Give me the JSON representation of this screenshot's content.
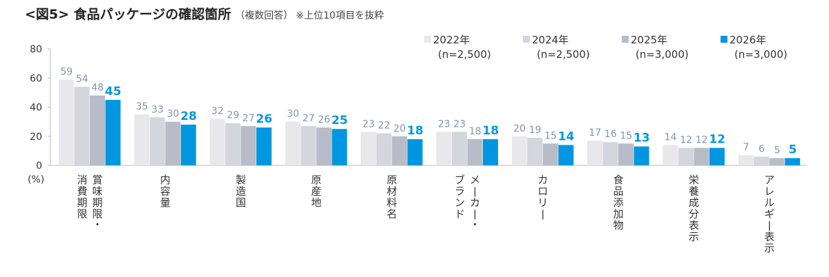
{
  "header": {
    "title": "<図5> 食品パッケージの確認箇所",
    "subtitle": "（複数回答）",
    "note": "※上位10項目を抜粋"
  },
  "colors": {
    "s2022": "#e8e8ec",
    "s2024": "#d3d6dd",
    "s2025": "#b7bcc8",
    "s2026": "#0097e0",
    "label_gray": "#7f96ad",
    "label_blue": "#0097e0"
  },
  "chart_data": {
    "type": "bar",
    "title": "<図5> 食品パッケージの確認箇所",
    "ylabel": "(%)",
    "ylim": [
      0,
      80
    ],
    "yticks": [
      0,
      20,
      40,
      60,
      80
    ],
    "grid": false,
    "legend_position": "top-right",
    "categories": [
      "賞味期限・消費期限",
      "内容量",
      "製造国",
      "原産地",
      "原材料名",
      "メーカー・ブランド",
      "カロリー",
      "食品添加物",
      "栄養成分表示",
      "アレルギー表示"
    ],
    "category_lines": [
      [
        "賞味期限・",
        "消費期限"
      ],
      [
        "内容量"
      ],
      [
        "製造国"
      ],
      [
        "原産地"
      ],
      [
        "原材料名"
      ],
      [
        "メーカー・",
        "ブランド"
      ],
      [
        "カロリー"
      ],
      [
        "食品添加物"
      ],
      [
        "栄養成分表示"
      ],
      [
        "アレルギー表示"
      ]
    ],
    "series": [
      {
        "name": "2022年",
        "n": "(n=2,500)",
        "values": [
          59,
          35,
          32,
          30,
          23,
          23,
          20,
          17,
          14,
          7
        ]
      },
      {
        "name": "2024年",
        "n": "(n=2,500)",
        "values": [
          54,
          33,
          29,
          27,
          22,
          23,
          19,
          16,
          12,
          6
        ]
      },
      {
        "name": "2025年",
        "n": "(n=3,000)",
        "values": [
          48,
          30,
          27,
          26,
          20,
          18,
          15,
          15,
          12,
          5
        ]
      },
      {
        "name": "2026年",
        "n": "(n=3,000)",
        "values": [
          45,
          28,
          26,
          25,
          18,
          18,
          14,
          13,
          12,
          5
        ]
      }
    ]
  }
}
